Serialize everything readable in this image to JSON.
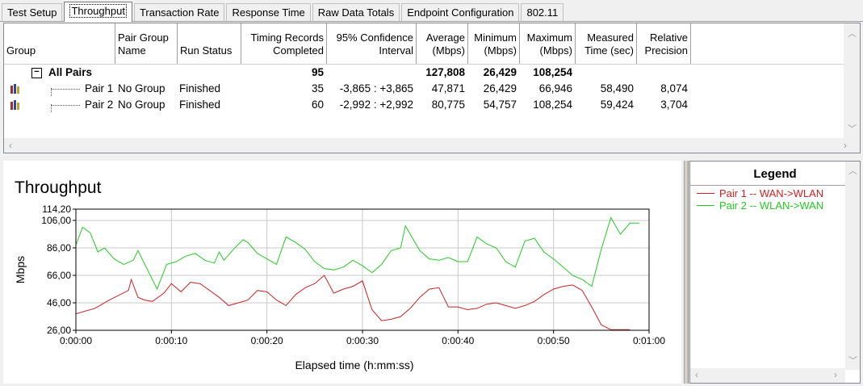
{
  "tabs": [
    "Test Setup",
    "Throughput",
    "Transaction Rate",
    "Response Time",
    "Raw Data Totals",
    "Endpoint Configuration",
    "802.11"
  ],
  "active_tab": 1,
  "table": {
    "headers": {
      "group": "Group",
      "pair_group_name_1": "Pair Group",
      "pair_group_name_2": "Name",
      "run_status": "Run Status",
      "timing_1": "Timing Records",
      "timing_2": "Completed",
      "ci_1": "95% Confidence",
      "ci_2": "Interval",
      "avg_1": "Average",
      "avg_2": "(Mbps)",
      "min_1": "Minimum",
      "min_2": "(Mbps)",
      "max_1": "Maximum",
      "max_2": "(Mbps)",
      "meas_1": "Measured",
      "meas_2": "Time (sec)",
      "rel_1": "Relative",
      "rel_2": "Precision"
    },
    "all_pairs": {
      "expander": "−",
      "label": "All Pairs",
      "timing": "95",
      "average": "127,808",
      "minimum": "26,429",
      "maximum": "108,254"
    },
    "rows": [
      {
        "pair": "Pair 1",
        "group_name": "No Group",
        "status": "Finished",
        "timing": "35",
        "ci": "-3,865 : +3,865",
        "average": "47,871",
        "minimum": "26,429",
        "maximum": "66,946",
        "measured": "58,490",
        "precision": "8,074"
      },
      {
        "pair": "Pair 2",
        "group_name": "No Group",
        "status": "Finished",
        "timing": "60",
        "ci": "-2,992 : +2,992",
        "average": "80,775",
        "minimum": "54,757",
        "maximum": "108,254",
        "measured": "59,424",
        "precision": "3,704"
      }
    ]
  },
  "legend": {
    "title": "Legend",
    "items": [
      {
        "label": "Pair 1 -- WAN->WLAN",
        "color": "#cc2222"
      },
      {
        "label": "Pair 2 -- WLAN->WAN",
        "color": "#22cc22"
      }
    ]
  },
  "chart_data": {
    "type": "line",
    "title": "Throughput",
    "xlabel": "Elapsed time (h:mm:ss)",
    "ylabel": "Mbps",
    "ylim": [
      26.0,
      114.2
    ],
    "xlim": [
      0,
      60
    ],
    "y_ticks": [
      "114,20",
      "106,00",
      "86,00",
      "66,00",
      "46,00",
      "26,00"
    ],
    "y_tick_values": [
      114.2,
      106,
      86,
      66,
      46,
      26
    ],
    "x_ticks": [
      "0:00:00",
      "0:00:10",
      "0:00:20",
      "0:00:30",
      "0:00:40",
      "0:00:50",
      "0:01:00"
    ],
    "x_tick_values": [
      0,
      10,
      20,
      30,
      40,
      50,
      60
    ],
    "grid": true,
    "series": [
      {
        "name": "Pair 1 -- WAN->WLAN",
        "color": "#cc2222",
        "points": [
          [
            0,
            38
          ],
          [
            2,
            42
          ],
          [
            3.5,
            48
          ],
          [
            5.5,
            55
          ],
          [
            5.8,
            63
          ],
          [
            6.5,
            50
          ],
          [
            7.2,
            48
          ],
          [
            8,
            47
          ],
          [
            9.2,
            53
          ],
          [
            10,
            60
          ],
          [
            11,
            54
          ],
          [
            12,
            61
          ],
          [
            13,
            60
          ],
          [
            14,
            55
          ],
          [
            15,
            50
          ],
          [
            16,
            44
          ],
          [
            17,
            46
          ],
          [
            18,
            48
          ],
          [
            19,
            55
          ],
          [
            20,
            54
          ],
          [
            21,
            48
          ],
          [
            22,
            44
          ],
          [
            23,
            52
          ],
          [
            24,
            57
          ],
          [
            25,
            60
          ],
          [
            26,
            66
          ],
          [
            27,
            53
          ],
          [
            28,
            56
          ],
          [
            29,
            58
          ],
          [
            30,
            62
          ],
          [
            31,
            41
          ],
          [
            32,
            33
          ],
          [
            33,
            34
          ],
          [
            34,
            36
          ],
          [
            35,
            42
          ],
          [
            36,
            50
          ],
          [
            37,
            56
          ],
          [
            38,
            57
          ],
          [
            39,
            43
          ],
          [
            40,
            43
          ],
          [
            41,
            41
          ],
          [
            42,
            42
          ],
          [
            43,
            45
          ],
          [
            44,
            46
          ],
          [
            45,
            44
          ],
          [
            46,
            42
          ],
          [
            47,
            44
          ],
          [
            48,
            47
          ],
          [
            49,
            52
          ],
          [
            50,
            56
          ],
          [
            51,
            58
          ],
          [
            52,
            59
          ],
          [
            53,
            55
          ],
          [
            54,
            43
          ],
          [
            55,
            30
          ],
          [
            56,
            26.4
          ],
          [
            57,
            26.4
          ],
          [
            58,
            26.4
          ]
        ]
      },
      {
        "name": "Pair 2 -- WLAN->WAN",
        "color": "#22cc22",
        "points": [
          [
            0,
            88
          ],
          [
            0.7,
            101
          ],
          [
            1.5,
            97
          ],
          [
            2.3,
            83
          ],
          [
            3,
            86
          ],
          [
            4,
            78
          ],
          [
            5,
            74
          ],
          [
            6,
            77
          ],
          [
            6.5,
            84
          ],
          [
            7.5,
            70
          ],
          [
            8.5,
            56
          ],
          [
            9.5,
            74
          ],
          [
            10.5,
            76
          ],
          [
            11.5,
            80
          ],
          [
            12.5,
            82
          ],
          [
            13.5,
            77
          ],
          [
            14.5,
            75
          ],
          [
            15,
            83
          ],
          [
            15.5,
            77
          ],
          [
            16.5,
            85
          ],
          [
            17.5,
            92
          ],
          [
            18,
            90
          ],
          [
            19,
            82
          ],
          [
            20,
            78
          ],
          [
            21,
            74
          ],
          [
            22,
            94
          ],
          [
            23,
            90
          ],
          [
            24,
            85
          ],
          [
            25,
            76
          ],
          [
            26,
            71
          ],
          [
            27,
            70
          ],
          [
            28,
            72
          ],
          [
            29,
            77
          ],
          [
            30,
            73
          ],
          [
            31,
            68
          ],
          [
            32,
            74
          ],
          [
            33,
            84
          ],
          [
            34,
            86
          ],
          [
            34.5,
            102
          ],
          [
            35.5,
            90
          ],
          [
            36,
            84
          ],
          [
            37,
            78
          ],
          [
            38,
            77
          ],
          [
            39,
            79
          ],
          [
            40,
            76
          ],
          [
            41,
            76
          ],
          [
            42,
            94
          ],
          [
            43,
            89
          ],
          [
            44,
            86
          ],
          [
            45,
            76
          ],
          [
            46,
            72
          ],
          [
            47,
            91
          ],
          [
            48,
            93
          ],
          [
            49,
            83
          ],
          [
            50,
            78
          ],
          [
            51,
            72
          ],
          [
            52,
            66
          ],
          [
            53,
            63
          ],
          [
            54,
            58
          ],
          [
            55,
            85
          ],
          [
            56,
            108
          ],
          [
            57,
            96
          ],
          [
            58,
            104
          ],
          [
            59,
            104
          ]
        ]
      }
    ]
  }
}
